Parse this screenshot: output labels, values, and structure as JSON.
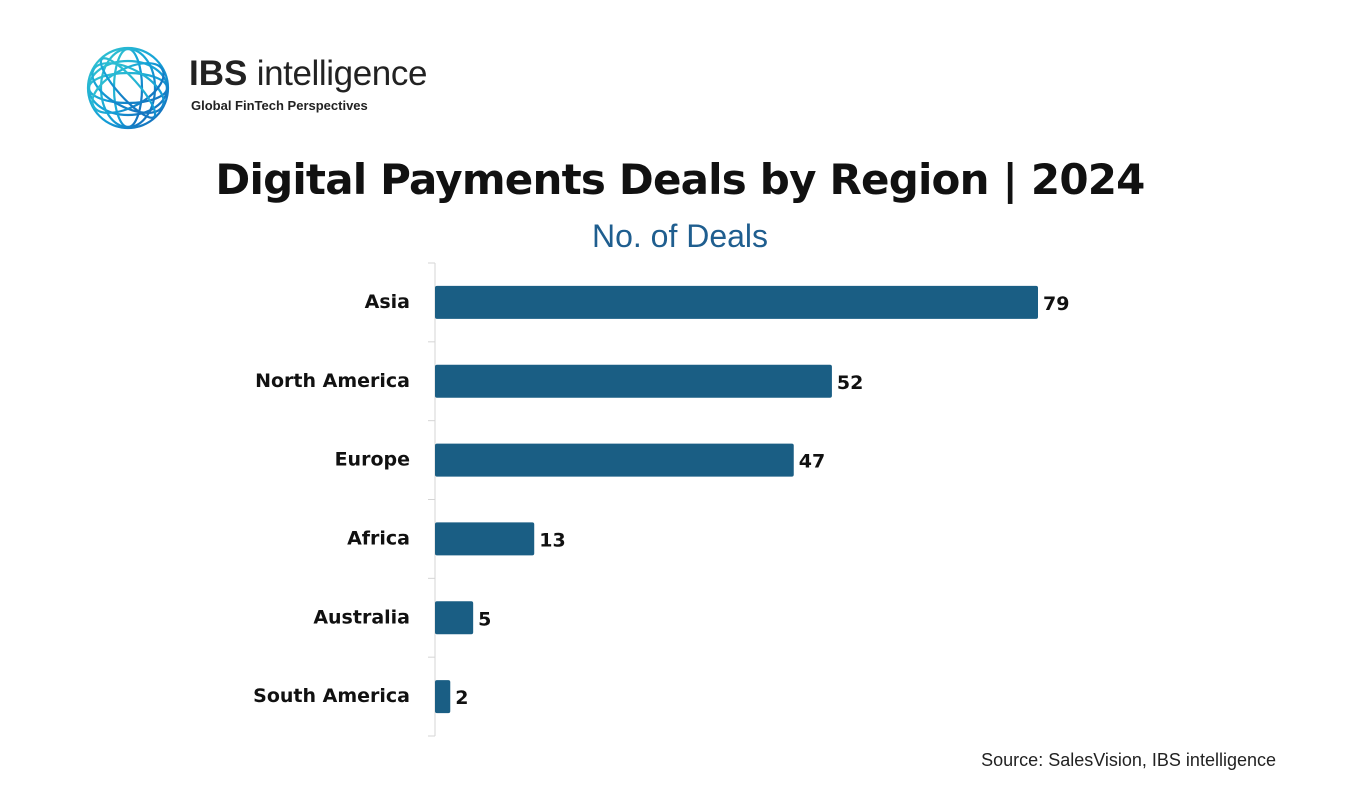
{
  "brand": {
    "name_bold": "IBS",
    "name_regular": "intelligence",
    "tagline": "Global FinTech Perspectives"
  },
  "chart_data": {
    "type": "bar",
    "orientation": "horizontal",
    "title": "Digital Payments Deals by Region | 2024",
    "subtitle": "No. of Deals",
    "categories": [
      "Asia",
      "North America",
      "Europe",
      "Africa",
      "Australia",
      "South America"
    ],
    "values": [
      79,
      52,
      47,
      13,
      5,
      2
    ],
    "xlabel": "",
    "ylabel": "",
    "xlim": [
      0,
      79
    ],
    "grid": false,
    "legend": "none",
    "data_labels": true,
    "colors": {
      "bar": "#1A5E84",
      "subtitle": "#1F5E8F",
      "axis": "#D5D5D5"
    }
  },
  "source": "Source: SalesVision, IBS intelligence"
}
